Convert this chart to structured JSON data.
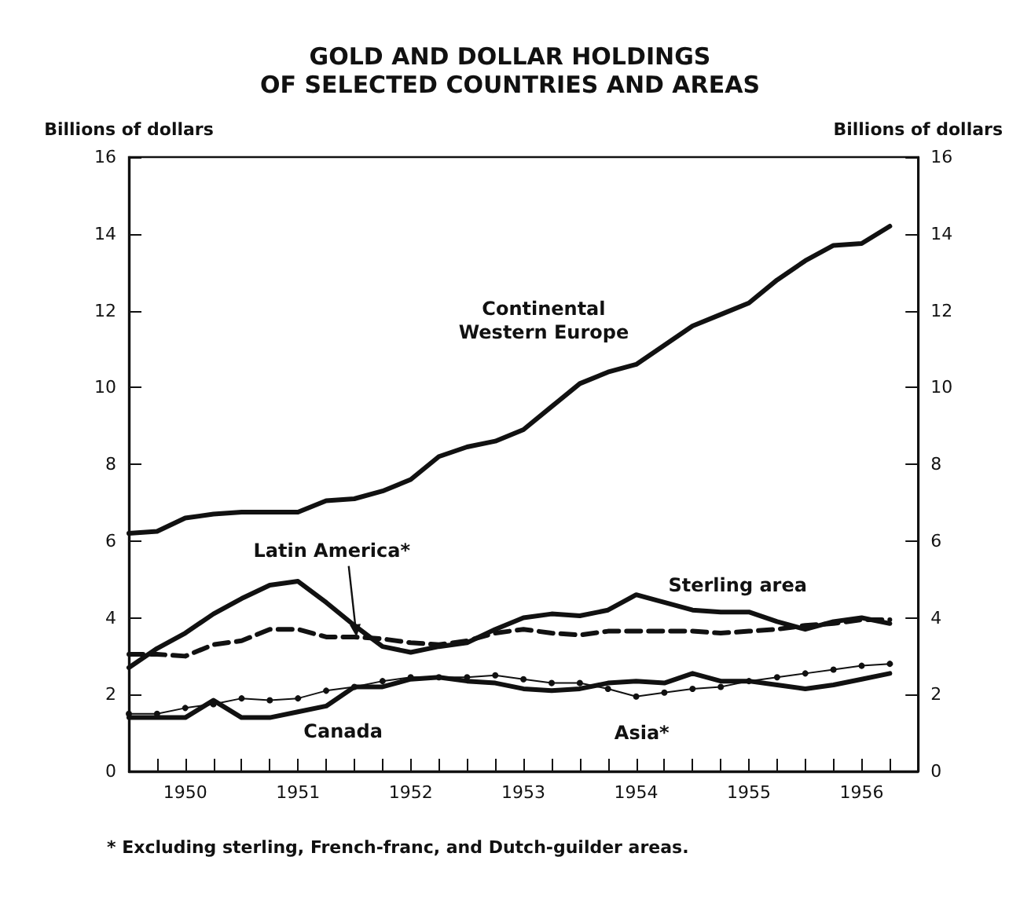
{
  "chart_data": {
    "type": "line",
    "title": "GOLD AND DOLLAR HOLDINGS\nOF SELECTED COUNTRIES AND AREAS",
    "ylabel": "Billions of dollars",
    "y2label": "Billions of dollars",
    "x": [
      1950,
      1950.25,
      1950.5,
      1950.75,
      1951,
      1951.25,
      1951.5,
      1951.75,
      1952,
      1952.25,
      1952.5,
      1952.75,
      1953,
      1953.25,
      1953.5,
      1953.75,
      1954,
      1954.25,
      1954.5,
      1954.75,
      1955,
      1955.25,
      1955.5,
      1955.75,
      1956,
      1956.25,
      1956.5,
      1956.75
    ],
    "series": [
      {
        "name": "Continental\nWestern Europe",
        "color": "#111111",
        "line_style": "solid",
        "marker": "none",
        "values": [
          6.2,
          6.25,
          6.6,
          6.7,
          6.75,
          6.75,
          6.75,
          7.05,
          7.1,
          7.3,
          7.6,
          8.2,
          8.45,
          8.6,
          8.9,
          9.5,
          10.1,
          10.4,
          10.6,
          11.1,
          11.6,
          11.9,
          12.2,
          12.8,
          13.3,
          13.7,
          13.75,
          14.2
        ]
      },
      {
        "name": "Latin America*",
        "color": "#111111",
        "line_style": "dashed",
        "marker": "none",
        "values": [
          3.05,
          3.05,
          3.0,
          3.3,
          3.4,
          3.7,
          3.7,
          3.5,
          3.5,
          3.45,
          3.35,
          3.3,
          3.4,
          3.6,
          3.7,
          3.6,
          3.55,
          3.65,
          3.65,
          3.65,
          3.65,
          3.6,
          3.65,
          3.7,
          3.8,
          3.85,
          3.95,
          3.95
        ]
      },
      {
        "name": "Sterling area",
        "color": "#111111",
        "line_style": "solid",
        "marker": "none",
        "values": [
          2.7,
          3.2,
          3.6,
          4.1,
          4.5,
          4.85,
          4.95,
          4.4,
          3.8,
          3.25,
          3.1,
          3.25,
          3.35,
          3.7,
          4.0,
          4.1,
          4.05,
          4.2,
          4.6,
          4.4,
          4.2,
          4.15,
          4.15,
          3.9,
          3.7,
          3.9,
          4.0,
          3.85
        ]
      },
      {
        "name": "Canada",
        "color": "#111111",
        "line_style": "solid",
        "marker": "none",
        "values": [
          1.4,
          1.4,
          1.4,
          1.85,
          1.4,
          1.4,
          1.55,
          1.7,
          2.2,
          2.2,
          2.4,
          2.45,
          2.35,
          2.3,
          2.15,
          2.1,
          2.15,
          2.3,
          2.35,
          2.3,
          2.55,
          2.35,
          2.35,
          2.25,
          2.15,
          2.25,
          2.4,
          2.55
        ]
      },
      {
        "name": "Asia*",
        "color": "#111111",
        "line_style": "solid",
        "marker": "circle",
        "values": [
          1.5,
          1.5,
          1.65,
          1.75,
          1.9,
          1.85,
          1.9,
          2.1,
          2.2,
          2.35,
          2.45,
          2.45,
          2.45,
          2.5,
          2.4,
          2.3,
          2.3,
          2.15,
          1.95,
          2.05,
          2.15,
          2.2,
          2.35,
          2.45,
          2.55,
          2.65,
          2.75,
          2.8
        ]
      }
    ],
    "xlim": [
      1950,
      1957
    ],
    "xticks": [
      {
        "value": 1950.25,
        "label": null
      },
      {
        "value": 1950.5,
        "label": "1950"
      },
      {
        "value": 1950.75,
        "label": null
      },
      {
        "value": 1951,
        "label": null
      },
      {
        "value": 1951.25,
        "label": null
      },
      {
        "value": 1951.5,
        "label": "1951"
      },
      {
        "value": 1951.75,
        "label": null
      },
      {
        "value": 1952,
        "label": null
      },
      {
        "value": 1952.25,
        "label": null
      },
      {
        "value": 1952.5,
        "label": "1952"
      },
      {
        "value": 1952.75,
        "label": null
      },
      {
        "value": 1953,
        "label": null
      },
      {
        "value": 1953.25,
        "label": null
      },
      {
        "value": 1953.5,
        "label": "1953"
      },
      {
        "value": 1953.75,
        "label": null
      },
      {
        "value": 1954,
        "label": null
      },
      {
        "value": 1954.25,
        "label": null
      },
      {
        "value": 1954.5,
        "label": "1954"
      },
      {
        "value": 1954.75,
        "label": null
      },
      {
        "value": 1955,
        "label": null
      },
      {
        "value": 1955.25,
        "label": null
      },
      {
        "value": 1955.5,
        "label": "1955"
      },
      {
        "value": 1955.75,
        "label": null
      },
      {
        "value": 1956,
        "label": null
      },
      {
        "value": 1956.25,
        "label": null
      },
      {
        "value": 1956.5,
        "label": "1956"
      },
      {
        "value": 1956.75,
        "label": null
      }
    ],
    "ylim": [
      0,
      16
    ],
    "yticks": [
      0,
      2,
      4,
      6,
      8,
      10,
      12,
      14,
      16
    ],
    "y2lim": [
      0,
      16
    ],
    "y2ticks": [
      0,
      2,
      4,
      6,
      8,
      10,
      12,
      14,
      16
    ],
    "grid": false,
    "legend": false,
    "annotations": [
      "* Excluding sterling, French-franc, and Dutch-guilder areas."
    ]
  }
}
